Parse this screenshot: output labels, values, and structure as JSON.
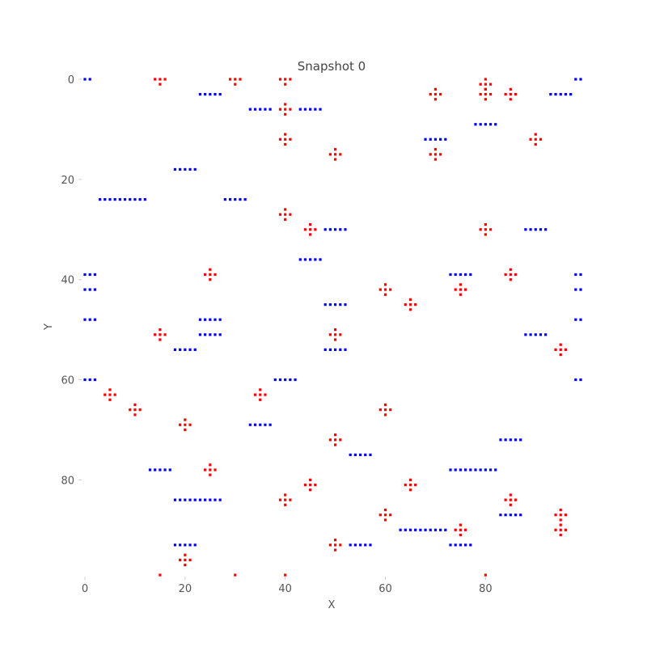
{
  "chart_data": {
    "type": "scatter",
    "title": "Snapshot 0",
    "xlabel": "X",
    "ylabel": "Y",
    "xlim": [
      0,
      99
    ],
    "ylim": [
      0,
      99
    ],
    "y_inverted": true,
    "grid": false,
    "xticks": [
      0,
      20,
      40,
      60,
      80
    ],
    "yticks": [
      0,
      20,
      40,
      60,
      80
    ],
    "series": [
      {
        "color": "#0000ff",
        "marker": "square",
        "segments": [
          [
            0,
            1,
            0
          ],
          [
            98,
            99,
            0
          ],
          [
            23,
            27,
            3
          ],
          [
            93,
            97,
            3
          ],
          [
            33,
            37,
            6
          ],
          [
            43,
            47,
            6
          ],
          [
            78,
            82,
            9
          ],
          [
            68,
            72,
            12
          ],
          [
            18,
            22,
            18
          ],
          [
            3,
            12,
            24
          ],
          [
            28,
            32,
            24
          ],
          [
            48,
            52,
            30
          ],
          [
            88,
            92,
            30
          ],
          [
            43,
            47,
            36
          ],
          [
            0,
            2,
            39
          ],
          [
            73,
            77,
            39
          ],
          [
            98,
            99,
            39
          ],
          [
            0,
            2,
            42
          ],
          [
            98,
            99,
            42
          ],
          [
            48,
            52,
            45
          ],
          [
            0,
            2,
            48
          ],
          [
            23,
            27,
            48
          ],
          [
            98,
            99,
            48
          ],
          [
            23,
            27,
            51
          ],
          [
            88,
            92,
            51
          ],
          [
            18,
            22,
            54
          ],
          [
            48,
            52,
            54
          ],
          [
            0,
            2,
            60
          ],
          [
            38,
            42,
            60
          ],
          [
            98,
            99,
            60
          ],
          [
            33,
            37,
            69
          ],
          [
            83,
            87,
            72
          ],
          [
            53,
            57,
            75
          ],
          [
            13,
            17,
            78
          ],
          [
            73,
            82,
            78
          ],
          [
            18,
            27,
            84
          ],
          [
            83,
            87,
            87
          ],
          [
            63,
            72,
            90
          ],
          [
            18,
            22,
            93
          ],
          [
            53,
            57,
            93
          ],
          [
            73,
            77,
            93
          ]
        ]
      },
      {
        "color": "#ff0000",
        "marker": "square",
        "plus_centers": [
          [
            80,
            1
          ],
          [
            15,
            0
          ],
          [
            30,
            0
          ],
          [
            40,
            0
          ],
          [
            70,
            3
          ],
          [
            80,
            3
          ],
          [
            85,
            3
          ],
          [
            40,
            6
          ],
          [
            40,
            12
          ],
          [
            90,
            12
          ],
          [
            50,
            15
          ],
          [
            70,
            15
          ],
          [
            40,
            27
          ],
          [
            45,
            30
          ],
          [
            80,
            30
          ],
          [
            25,
            39
          ],
          [
            85,
            39
          ],
          [
            60,
            42
          ],
          [
            75,
            42
          ],
          [
            65,
            45
          ],
          [
            15,
            51
          ],
          [
            50,
            51
          ],
          [
            95,
            54
          ],
          [
            5,
            63
          ],
          [
            35,
            63
          ],
          [
            10,
            66
          ],
          [
            60,
            66
          ],
          [
            20,
            69
          ],
          [
            50,
            72
          ],
          [
            25,
            78
          ],
          [
            45,
            81
          ],
          [
            65,
            81
          ],
          [
            40,
            84
          ],
          [
            85,
            84
          ],
          [
            60,
            87
          ],
          [
            95,
            87
          ],
          [
            75,
            90
          ],
          [
            95,
            90
          ],
          [
            50,
            93
          ],
          [
            20,
            96
          ]
        ],
        "points": [
          [
            15,
            99
          ],
          [
            30,
            99
          ],
          [
            40,
            99
          ],
          [
            80,
            99
          ]
        ]
      }
    ]
  }
}
